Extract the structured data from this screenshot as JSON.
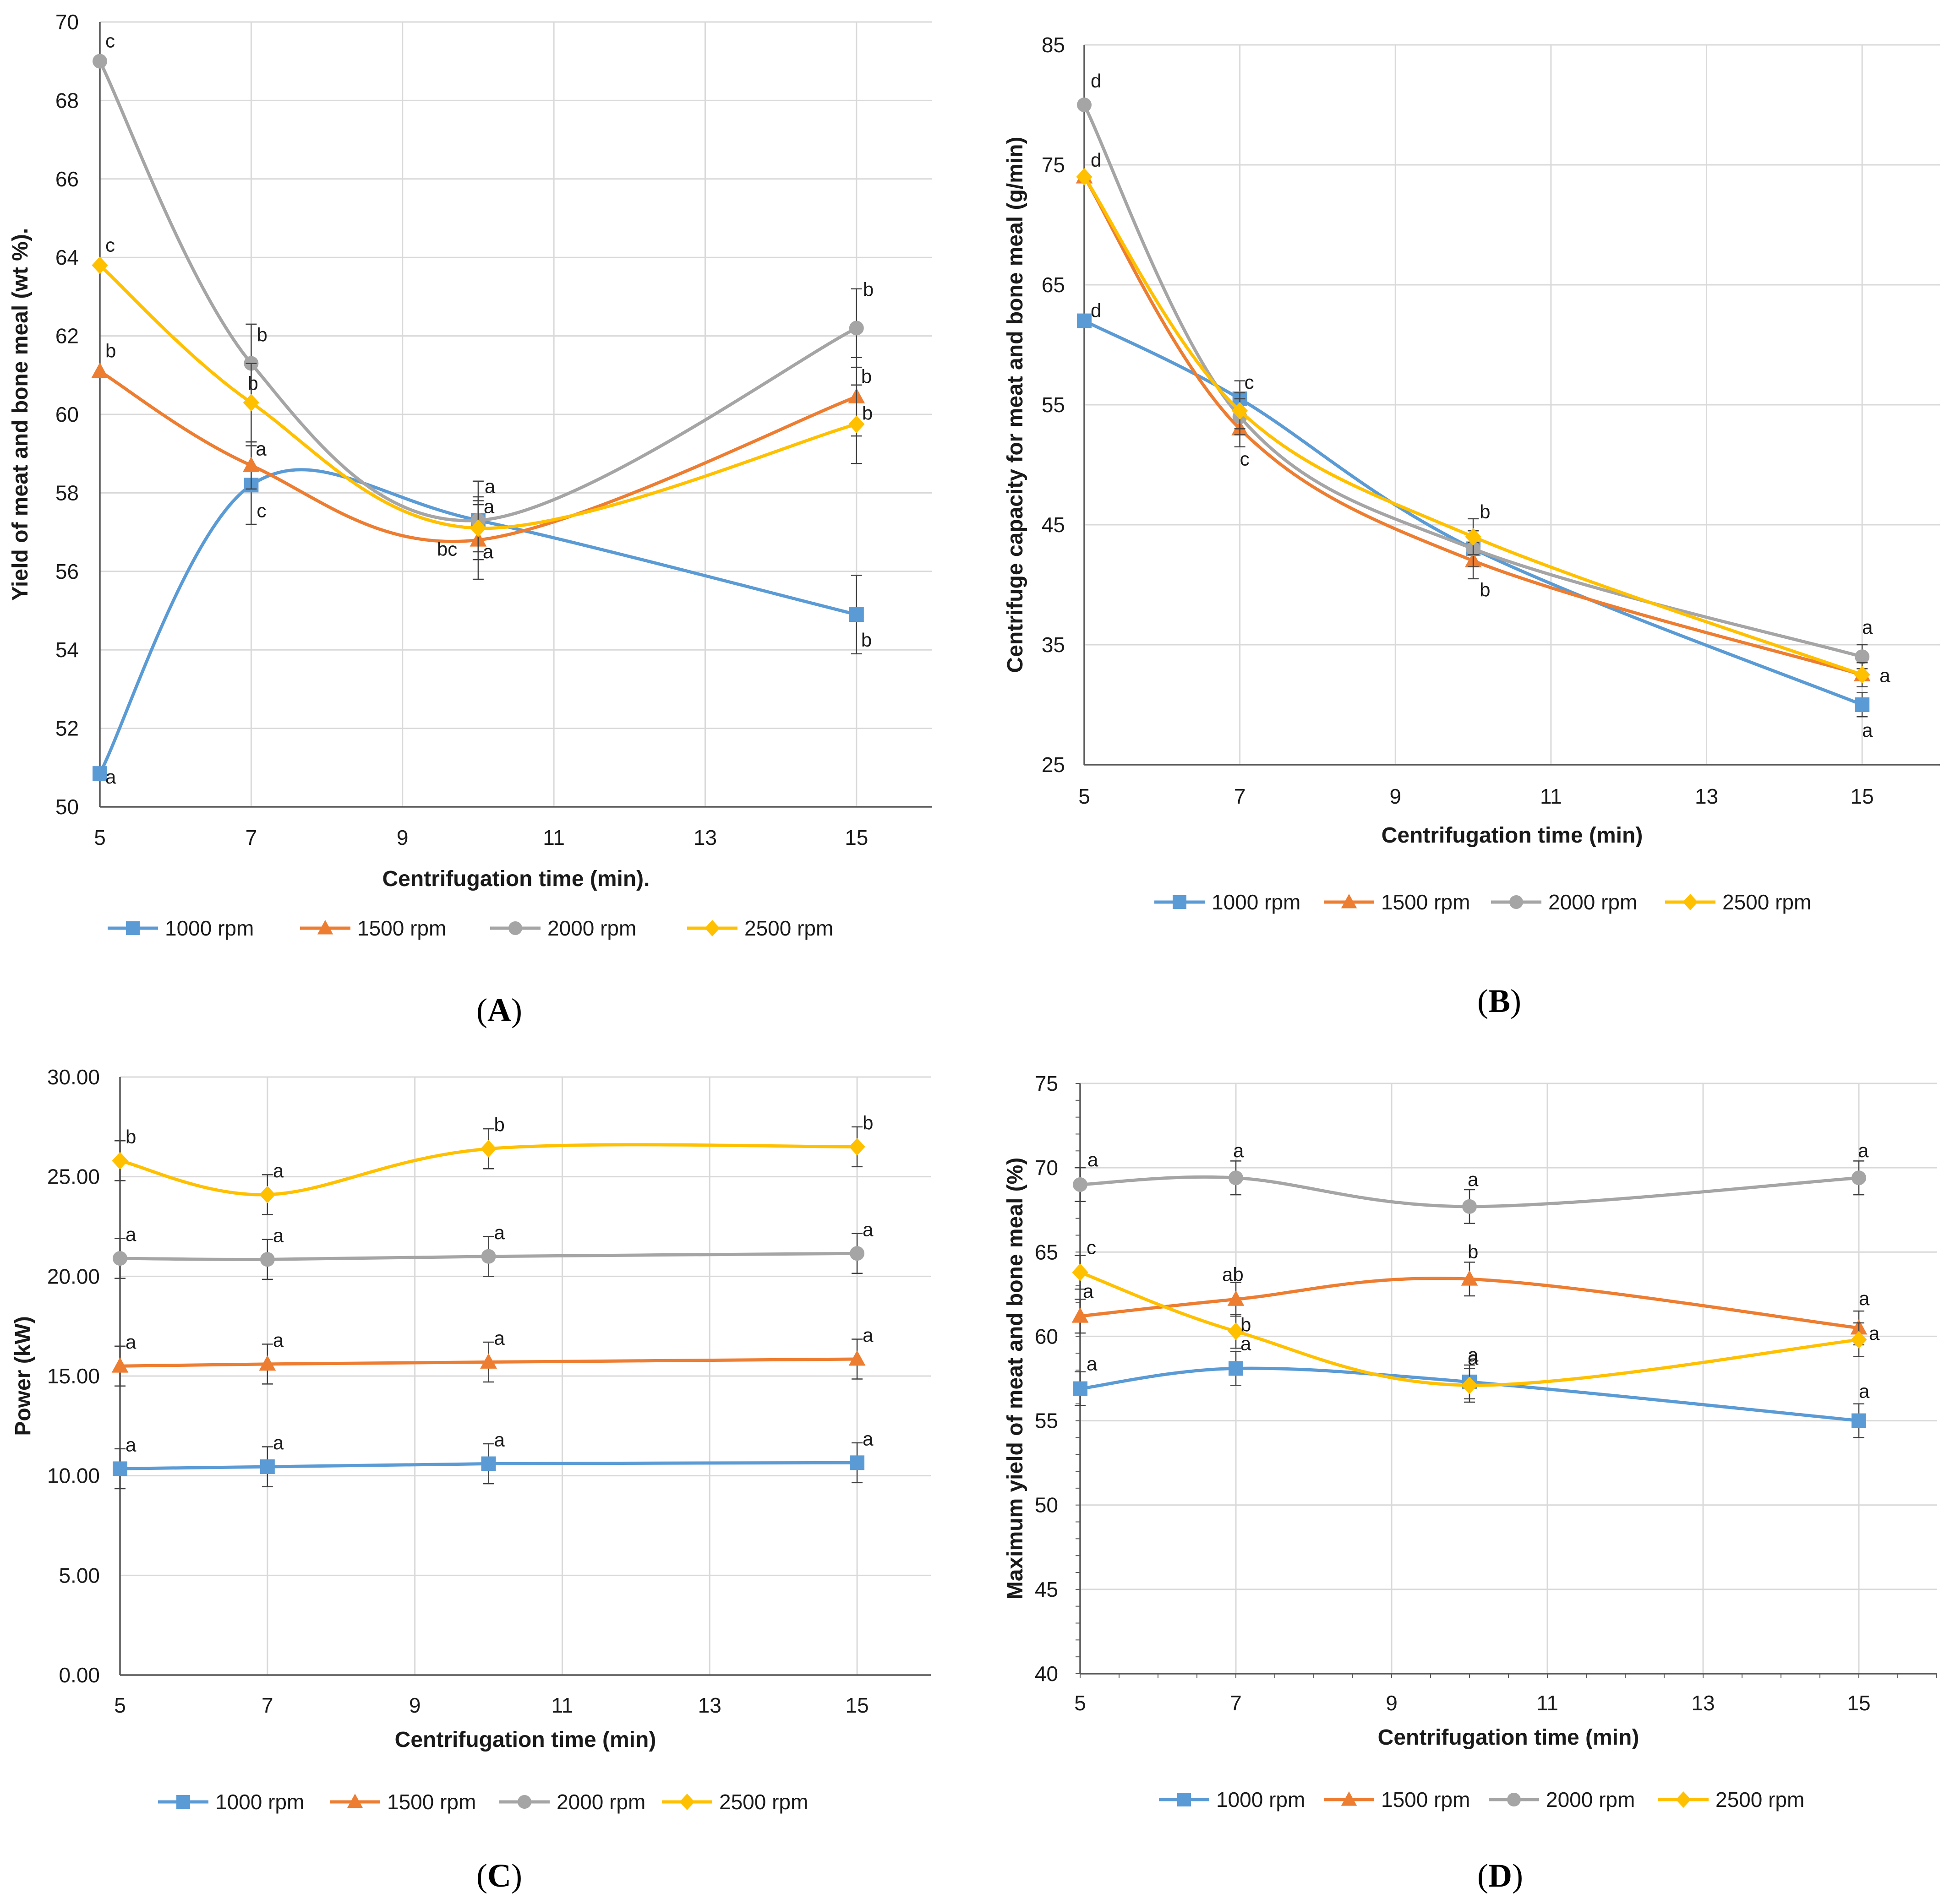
{
  "colors": {
    "s1000": "#5B9BD5",
    "s1500": "#ED7D31",
    "s2000": "#A5A5A5",
    "s2500": "#FFC000",
    "grid": "#D9D9D9",
    "axis": "#595959",
    "errbar": "#404040"
  },
  "chart_data": [
    {
      "id": "A",
      "type": "line",
      "panel_label": "A",
      "xlabel": "Centrifugation time (min).",
      "ylabel": "Yield of meat and bone meal (wt %).",
      "xlim": [
        5,
        16
      ],
      "ylim": [
        50,
        70
      ],
      "x_ticks": [
        5,
        7,
        9,
        11,
        13,
        15
      ],
      "y_ticks": [
        50,
        52,
        54,
        56,
        58,
        60,
        62,
        64,
        66,
        68,
        70
      ],
      "y_tick_labels": [
        "50",
        "52",
        "54",
        "56",
        "58",
        "60",
        "62",
        "64",
        "66",
        "68",
        "70"
      ],
      "series": [
        {
          "name": "1000 rpm",
          "marker": "square",
          "x": [
            5,
            7,
            10,
            15
          ],
          "values": [
            50.85,
            58.2,
            57.3,
            54.9
          ],
          "err": [
            0,
            1.0,
            0.6,
            1.0
          ],
          "letters": [
            "a",
            "c",
            "a",
            "b"
          ]
        },
        {
          "name": "1500 rpm",
          "marker": "triangle",
          "x": [
            5,
            7,
            10,
            15
          ],
          "values": [
            61.1,
            58.7,
            56.8,
            60.45
          ],
          "err": [
            0,
            0.6,
            1.0,
            1.0
          ],
          "letters": [
            "b",
            "a",
            "a",
            "b"
          ]
        },
        {
          "name": "2000  rpm",
          "marker": "circle",
          "x": [
            5,
            7,
            10,
            15
          ],
          "values": [
            69.0,
            61.3,
            57.3,
            62.2
          ],
          "err": [
            0,
            1.0,
            1.0,
            1.0
          ],
          "letters": [
            "c",
            "b",
            "a",
            "b"
          ]
        },
        {
          "name": "2500 rpm",
          "marker": "diamond",
          "x": [
            5,
            7,
            10,
            15
          ],
          "values": [
            63.8,
            60.3,
            57.1,
            59.75
          ],
          "err": [
            0,
            1.0,
            0.6,
            1.0
          ],
          "letters": [
            "c",
            "b",
            "bc",
            "b"
          ]
        }
      ]
    },
    {
      "id": "B",
      "type": "line",
      "panel_label": "B",
      "xlabel": "Centrifugation time (min)",
      "ylabel": "Centrifuge capacity for meat and bone meal (g/min)",
      "xlim": [
        5,
        16
      ],
      "ylim": [
        25,
        85
      ],
      "x_ticks": [
        5,
        7,
        9,
        11,
        13,
        15
      ],
      "y_ticks": [
        25,
        35,
        45,
        55,
        65,
        75,
        85
      ],
      "y_tick_labels": [
        "25",
        "35",
        "45",
        "55",
        "65",
        "75",
        "85"
      ],
      "series": [
        {
          "name": "1000 rpm",
          "marker": "square",
          "x": [
            5,
            7,
            10,
            15
          ],
          "values": [
            62,
            55.5,
            43,
            30
          ],
          "err": [
            0,
            1.5,
            1.5,
            1.0
          ],
          "letters": [
            "d",
            "c",
            "b",
            "a"
          ]
        },
        {
          "name": "1500 rpm",
          "marker": "triangle",
          "x": [
            5,
            7,
            10,
            15
          ],
          "values": [
            74,
            53,
            42,
            32.5
          ],
          "err": [
            0,
            1.5,
            1.5,
            1.0
          ],
          "letters": [
            "d",
            "c",
            "b",
            "a"
          ]
        },
        {
          "name": "2000  rpm",
          "marker": "circle",
          "x": [
            5,
            7,
            10,
            15
          ],
          "values": [
            80,
            54,
            43,
            34
          ],
          "err": [
            0,
            1.5,
            1.5,
            1.0
          ],
          "letters": [
            "d",
            "c",
            "b",
            "a"
          ]
        },
        {
          "name": "2500 rpm",
          "marker": "diamond",
          "x": [
            5,
            7,
            10,
            15
          ],
          "values": [
            74,
            54.5,
            44,
            32.5
          ],
          "err": [
            0,
            1.5,
            1.5,
            1.0
          ],
          "letters": [
            "d",
            "c",
            "b",
            "a"
          ]
        }
      ],
      "visible_letters": [
        {
          "text": "d",
          "x": 5,
          "y": 62,
          "dx": 14,
          "dy": -8
        },
        {
          "text": "d",
          "x": 5,
          "y": 74,
          "dx": 14,
          "dy": -22
        },
        {
          "text": "d",
          "x": 5,
          "y": 80,
          "dx": 14,
          "dy": -38
        },
        {
          "text": "c",
          "x": 7,
          "y": 55.5,
          "dx": 10,
          "dy": -22
        },
        {
          "text": "c",
          "x": 7,
          "y": 53,
          "dx": 0,
          "dy": 80
        },
        {
          "text": "b",
          "x": 10,
          "y": 44,
          "dx": 14,
          "dy": -40
        },
        {
          "text": "b",
          "x": 10,
          "y": 42,
          "dx": 14,
          "dy": 78
        },
        {
          "text": "a",
          "x": 15,
          "y": 34,
          "dx": 0,
          "dy": -50
        },
        {
          "text": "a",
          "x": 15,
          "y": 32.5,
          "dx": 38,
          "dy": 16
        },
        {
          "text": "a",
          "x": 15,
          "y": 30,
          "dx": 0,
          "dy": 70
        }
      ]
    },
    {
      "id": "C",
      "type": "line",
      "panel_label": "C",
      "xlabel": "Centrifugation time (min)",
      "ylabel": "Power (kW)",
      "xlim": [
        5,
        16
      ],
      "ylim": [
        0,
        30
      ],
      "x_ticks": [
        5,
        7,
        9,
        11,
        13,
        15
      ],
      "y_ticks": [
        0,
        5,
        10,
        15,
        20,
        25,
        30
      ],
      "y_tick_labels": [
        "0.00",
        "5.00",
        "10.00",
        "15.00",
        "20.00",
        "25.00",
        "30.00"
      ],
      "series": [
        {
          "name": "1000 rpm",
          "marker": "square",
          "x": [
            5,
            7,
            10,
            15
          ],
          "values": [
            10.35,
            10.45,
            10.6,
            10.65
          ],
          "err": [
            1.0,
            1.0,
            1.0,
            1.0
          ],
          "letters": [
            "a",
            "a",
            "a",
            "a"
          ]
        },
        {
          "name": "1500 rpm",
          "marker": "triangle",
          "x": [
            5,
            7,
            10,
            15
          ],
          "values": [
            15.5,
            15.6,
            15.7,
            15.85
          ],
          "err": [
            1.0,
            1.0,
            1.0,
            1.0
          ],
          "letters": [
            "a",
            "a",
            "a",
            "a"
          ]
        },
        {
          "name": "2000  rpm",
          "marker": "circle",
          "x": [
            5,
            7,
            10,
            15
          ],
          "values": [
            20.9,
            20.85,
            21.0,
            21.15
          ],
          "err": [
            1.0,
            1.0,
            1.0,
            1.0
          ],
          "letters": [
            "a",
            "a",
            "a",
            "a"
          ]
        },
        {
          "name": "2500 rpm",
          "marker": "diamond",
          "x": [
            5,
            7,
            10,
            15
          ],
          "values": [
            25.8,
            24.1,
            26.4,
            26.5
          ],
          "err": [
            1.0,
            1.0,
            1.0,
            1.0
          ],
          "letters": [
            "b",
            "a",
            "b",
            "b"
          ]
        }
      ]
    },
    {
      "id": "D",
      "type": "line",
      "panel_label": "D",
      "xlabel": "Centrifugation time (min)",
      "ylabel": "Maximum yield of meat and bone meal (%)",
      "xlim": [
        5,
        16
      ],
      "ylim": [
        40,
        75
      ],
      "x_ticks": [
        5,
        7,
        9,
        11,
        13,
        15
      ],
      "y_ticks": [
        40,
        45,
        50,
        55,
        60,
        65,
        70,
        75
      ],
      "y_tick_labels": [
        "40",
        "45",
        "50",
        "55",
        "60",
        "65",
        "70",
        "75"
      ],
      "series": [
        {
          "name": "1000 rpm",
          "marker": "square",
          "x": [
            5,
            7,
            10,
            15
          ],
          "values": [
            56.9,
            58.1,
            57.3,
            55.0
          ],
          "err": [
            1.0,
            1.0,
            1.0,
            1.0
          ],
          "letters": [
            "a",
            "a",
            "a",
            "a"
          ]
        },
        {
          "name": "1500 rpm",
          "marker": "triangle",
          "x": [
            5,
            7,
            10,
            15
          ],
          "values": [
            61.2,
            62.2,
            63.4,
            60.5
          ],
          "err": [
            1.0,
            1.0,
            1.0,
            1.0
          ],
          "letters": [
            "a",
            "ab",
            "b",
            "a"
          ]
        },
        {
          "name": "2000  rpm",
          "marker": "circle",
          "x": [
            5,
            7,
            10,
            15
          ],
          "values": [
            69.0,
            69.4,
            67.7,
            69.4
          ],
          "err": [
            1.0,
            1.0,
            1.0,
            1.0
          ],
          "letters": [
            "a",
            "a",
            "a",
            "a"
          ]
        },
        {
          "name": "2500 rpm",
          "marker": "diamond",
          "x": [
            5,
            7,
            10,
            15
          ],
          "values": [
            63.8,
            60.3,
            57.1,
            59.8
          ],
          "err": [
            1.0,
            1.0,
            1.0,
            1.0
          ],
          "letters": [
            "c",
            "b",
            "a",
            "a"
          ]
        }
      ]
    }
  ]
}
